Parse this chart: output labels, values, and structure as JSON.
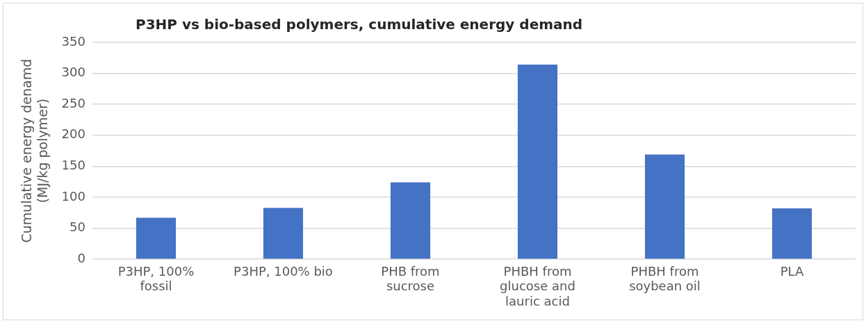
{
  "chart_data": {
    "type": "bar",
    "title": "P3HP vs bio-based polymers, cumulative energy demand",
    "ylabel": "Cumulative energy denamd (MJ/kg polymer)",
    "categories": [
      "P3HP, 100% fossil",
      "P3HP, 100% bio",
      "PHB from sucrose",
      "PHBH from glucose and lauric acid",
      "PHBH from soybean oil",
      "PLA"
    ],
    "values": [
      67,
      83,
      124,
      314,
      169,
      82
    ],
    "color": "#4472c4",
    "ylim": [
      0,
      350
    ],
    "yticks": [
      0,
      50,
      100,
      150,
      200,
      250,
      300,
      350
    ],
    "grid": "y",
    "legend": false
  }
}
